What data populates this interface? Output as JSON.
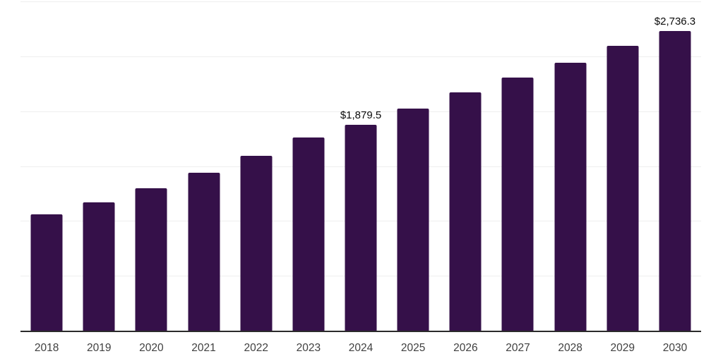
{
  "chart_data": {
    "type": "bar",
    "title": "",
    "xlabel": "",
    "ylabel": "",
    "categories": [
      "2018",
      "2019",
      "2020",
      "2021",
      "2022",
      "2023",
      "2024",
      "2025",
      "2026",
      "2027",
      "2028",
      "2029",
      "2030"
    ],
    "values": [
      1065,
      1175,
      1305,
      1445,
      1600,
      1765,
      1879.5,
      2030,
      2180,
      2310,
      2450,
      2600,
      2736.3
    ],
    "value_unit_prefix": "$",
    "data_labels": {
      "2024": "$1,879.5",
      "2030": "$2,736.3"
    },
    "ylim": [
      0,
      3000
    ],
    "gridline_step": 500,
    "grid": true,
    "legend_position": "none",
    "colors": {
      "bar": "#351049",
      "gridline": "#efefef",
      "axis_line": "#2b2b2b",
      "tick_label": "#404040",
      "data_label": "#0a0a0a",
      "background": "#ffffff"
    }
  }
}
